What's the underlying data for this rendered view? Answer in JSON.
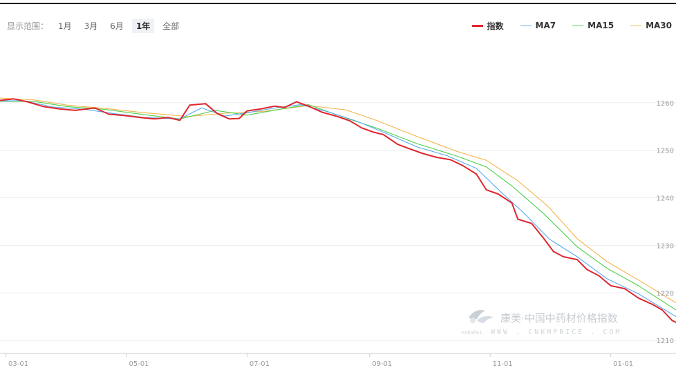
{
  "range_selector": {
    "label": "显示范围：",
    "options": [
      "1月",
      "3月",
      "6月",
      "1年",
      "全部"
    ],
    "active": "1年"
  },
  "legend": [
    {
      "name": "指数",
      "color": "#e0262e"
    },
    {
      "name": "MA7",
      "color": "#5aa9f0"
    },
    {
      "name": "MA15",
      "color": "#4cd14c"
    },
    {
      "name": "MA30",
      "color": "#f3b44a"
    }
  ],
  "watermark": {
    "logo_icon": "kangmei-leaf-logo",
    "title": "康美·中国中药材价格指数",
    "subtitle": "WWW . CNKMPRICE . COM"
  },
  "chart_data": {
    "type": "line",
    "x_ticks": [
      "03-01",
      "05-01",
      "07-01",
      "09-01",
      "11-01",
      "01-01"
    ],
    "y_ticks": [
      "1210",
      "1220",
      "1230",
      "1240",
      "1250",
      "1260"
    ],
    "ylim": [
      1209,
      1270
    ],
    "grid": true,
    "legend_position": "top-right",
    "series": [
      {
        "name": "指数",
        "color": "#e0262e",
        "points": [
          [
            "02-26",
            1260.5
          ],
          [
            "03-05",
            1260.8
          ],
          [
            "03-12",
            1260.2
          ],
          [
            "03-20",
            1259.2
          ],
          [
            "03-28",
            1258.7
          ],
          [
            "04-05",
            1258.4
          ],
          [
            "04-15",
            1258.9
          ],
          [
            "04-22",
            1257.6
          ],
          [
            "04-30",
            1257.3
          ],
          [
            "05-08",
            1256.9
          ],
          [
            "05-15",
            1256.6
          ],
          [
            "05-22",
            1256.9
          ],
          [
            "05-28",
            1256.3
          ],
          [
            "06-02",
            1259.5
          ],
          [
            "06-10",
            1259.8
          ],
          [
            "06-16",
            1257.7
          ],
          [
            "06-22",
            1256.6
          ],
          [
            "06-27",
            1256.7
          ],
          [
            "07-01",
            1258.3
          ],
          [
            "07-08",
            1258.7
          ],
          [
            "07-15",
            1259.3
          ],
          [
            "07-20",
            1259.0
          ],
          [
            "07-26",
            1260.2
          ],
          [
            "08-01",
            1259.3
          ],
          [
            "08-08",
            1258.0
          ],
          [
            "08-15",
            1257.2
          ],
          [
            "08-22",
            1256.2
          ],
          [
            "08-28",
            1254.7
          ],
          [
            "09-03",
            1253.8
          ],
          [
            "09-08",
            1253.3
          ],
          [
            "09-15",
            1251.3
          ],
          [
            "09-20",
            1250.5
          ],
          [
            "09-28",
            1249.3
          ],
          [
            "10-05",
            1248.5
          ],
          [
            "10-12",
            1248.0
          ],
          [
            "10-18",
            1246.8
          ],
          [
            "10-25",
            1245.0
          ],
          [
            "10-30",
            1241.7
          ],
          [
            "11-05",
            1240.8
          ],
          [
            "11-12",
            1238.9
          ],
          [
            "11-15",
            1235.5
          ],
          [
            "11-22",
            1234.6
          ],
          [
            "11-28",
            1231.5
          ],
          [
            "12-03",
            1228.7
          ],
          [
            "12-08",
            1227.6
          ],
          [
            "12-15",
            1227.0
          ],
          [
            "12-20",
            1224.9
          ],
          [
            "12-26",
            1223.6
          ],
          [
            "01-01",
            1221.5
          ],
          [
            "01-08",
            1220.9
          ],
          [
            "01-15",
            1218.9
          ],
          [
            "01-22",
            1217.6
          ],
          [
            "01-27",
            1216.4
          ],
          [
            "02-01",
            1214.2
          ],
          [
            "02-03",
            1213.8
          ]
        ]
      },
      {
        "name": "MA7",
        "color": "#5aa9f0",
        "points": [
          [
            "02-26",
            1260.4
          ],
          [
            "03-10",
            1260.4
          ],
          [
            "03-25",
            1259.1
          ],
          [
            "04-10",
            1258.6
          ],
          [
            "04-25",
            1257.7
          ],
          [
            "05-10",
            1256.9
          ],
          [
            "05-28",
            1256.6
          ],
          [
            "06-08",
            1258.9
          ],
          [
            "06-20",
            1257.2
          ],
          [
            "07-01",
            1257.9
          ],
          [
            "07-15",
            1258.9
          ],
          [
            "07-28",
            1259.6
          ],
          [
            "08-10",
            1258.2
          ],
          [
            "08-25",
            1256.2
          ],
          [
            "09-08",
            1253.8
          ],
          [
            "09-25",
            1250.7
          ],
          [
            "10-10",
            1248.9
          ],
          [
            "10-25",
            1246.2
          ],
          [
            "11-05",
            1241.8
          ],
          [
            "11-18",
            1236.8
          ],
          [
            "12-01",
            1231.3
          ],
          [
            "12-15",
            1227.6
          ],
          [
            "12-30",
            1223.0
          ],
          [
            "01-15",
            1219.8
          ],
          [
            "02-03",
            1215.0
          ]
        ]
      },
      {
        "name": "MA15",
        "color": "#4cd14c",
        "points": [
          [
            "02-26",
            1260.3
          ],
          [
            "03-15",
            1260.3
          ],
          [
            "04-01",
            1259.2
          ],
          [
            "04-20",
            1258.6
          ],
          [
            "05-10",
            1257.5
          ],
          [
            "05-28",
            1256.6
          ],
          [
            "06-15",
            1258.4
          ],
          [
            "07-01",
            1257.4
          ],
          [
            "07-20",
            1258.8
          ],
          [
            "08-01",
            1259.6
          ],
          [
            "08-20",
            1256.8
          ],
          [
            "09-05",
            1254.6
          ],
          [
            "09-25",
            1251.4
          ],
          [
            "10-15",
            1248.8
          ],
          [
            "10-30",
            1246.5
          ],
          [
            "11-12",
            1242.5
          ],
          [
            "11-28",
            1236.7
          ],
          [
            "12-15",
            1229.7
          ],
          [
            "12-30",
            1225.2
          ],
          [
            "01-15",
            1221.5
          ],
          [
            "02-03",
            1216.4
          ]
        ]
      },
      {
        "name": "MA30",
        "color": "#f3b44a",
        "points": [
          [
            "02-26",
            1261.0
          ],
          [
            "03-15",
            1260.6
          ],
          [
            "04-01",
            1259.5
          ],
          [
            "04-20",
            1258.8
          ],
          [
            "05-10",
            1257.9
          ],
          [
            "06-01",
            1257.1
          ],
          [
            "06-20",
            1257.8
          ],
          [
            "07-10",
            1258.2
          ],
          [
            "08-01",
            1259.4
          ],
          [
            "08-20",
            1258.5
          ],
          [
            "09-05",
            1256.2
          ],
          [
            "09-25",
            1252.9
          ],
          [
            "10-15",
            1249.8
          ],
          [
            "10-30",
            1247.9
          ],
          [
            "11-15",
            1243.6
          ],
          [
            "11-30",
            1238.3
          ],
          [
            "12-15",
            1231.4
          ],
          [
            "12-30",
            1226.6
          ],
          [
            "01-15",
            1222.7
          ],
          [
            "02-03",
            1217.9
          ]
        ]
      }
    ]
  }
}
